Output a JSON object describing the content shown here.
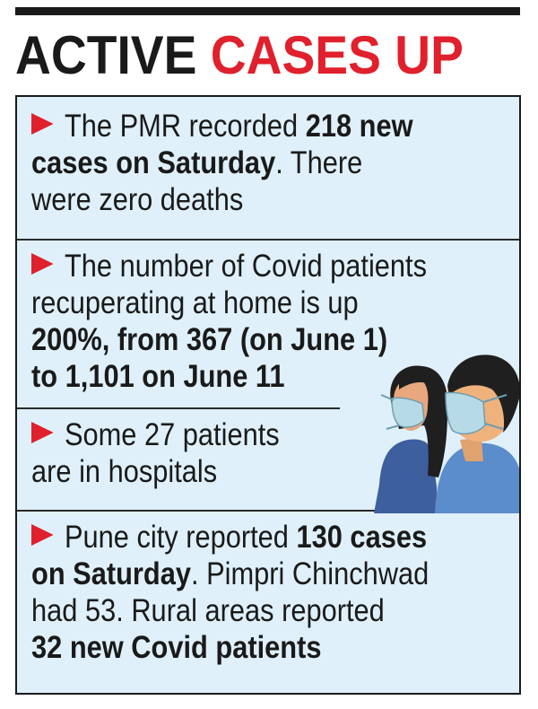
{
  "headline": {
    "part1": "ACTIVE",
    "part2": "CASES UP"
  },
  "items": [
    {
      "lines": [
        [
          {
            "t": "The PMR recorded ",
            "b": false
          },
          {
            "t": "218 new",
            "b": true
          }
        ],
        [
          {
            "t": "cases on Saturday",
            "b": true
          },
          {
            "t": ". There",
            "b": false
          }
        ],
        [
          {
            "t": "were zero deaths",
            "b": false
          }
        ]
      ]
    },
    {
      "lines": [
        [
          {
            "t": "The number of Covid patients",
            "b": false
          }
        ],
        [
          {
            "t": "recuperating at home is up",
            "b": false
          }
        ],
        [
          {
            "t": "200%, from 367 (on June 1)",
            "b": true
          }
        ],
        [
          {
            "t": "to 1,101 on June 11",
            "b": true
          }
        ]
      ]
    },
    {
      "lines": [
        [
          {
            "t": "Some 27 patients",
            "b": false
          }
        ],
        [
          {
            "t": "are in hospitals",
            "b": false
          }
        ]
      ]
    },
    {
      "lines": [
        [
          {
            "t": "Pune city reported ",
            "b": false
          },
          {
            "t": "130 cases",
            "b": true
          }
        ],
        [
          {
            "t": "on Saturday",
            "b": true
          },
          {
            "t": ". Pimpri Chinchwad",
            "b": false
          }
        ],
        [
          {
            "t": "had 53. Rural areas reported",
            "b": false
          }
        ],
        [
          {
            "t": "32 new Covid patients",
            "b": true
          }
        ]
      ]
    }
  ],
  "colors": {
    "accent_red": "#e0202c",
    "panel_bg": "#dff0fa",
    "text": "#1a1a1a"
  },
  "icons": [
    "arrow-bullet-icon",
    "masked-people-illustration"
  ]
}
